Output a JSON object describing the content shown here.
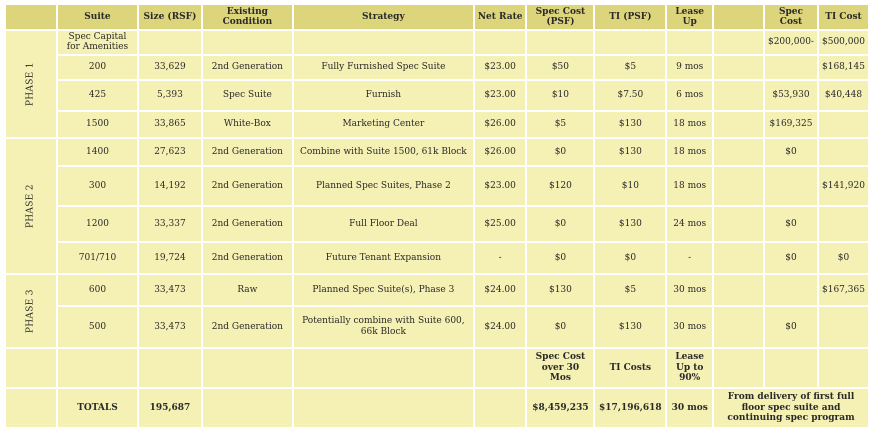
{
  "headers": {
    "suite": "Suite",
    "size": "Size (RSF)",
    "existing": "Existing Condition",
    "strategy": "Strategy",
    "net_rate": "Net Rate",
    "spec_cost_psf": "Spec Cost (PSF)",
    "ti_psf": "TI (PSF)",
    "lease_up": "Lease Up",
    "spec_cost": "Spec Cost",
    "ti_cost": "TI Cost"
  },
  "phases": [
    "PHASE 1",
    "PHASE 2",
    "PHASE 3"
  ],
  "rows": [
    {
      "suite": "Spec Capital for Amenities",
      "size": "",
      "existing": "",
      "strategy": "",
      "net_rate": "",
      "spec_cost_psf": "",
      "ti_psf": "",
      "lease_up": "",
      "spec_cost": "$200,000-",
      "ti_cost": "$500,000"
    },
    {
      "suite": "200",
      "size": "33,629",
      "existing": "2nd Generation",
      "strategy": "Fully Furnished Spec Suite",
      "net_rate": "$23.00",
      "spec_cost_psf": "$50",
      "ti_psf": "$5",
      "lease_up": "9 mos",
      "spec_cost": "",
      "ti_cost": "$168,145"
    },
    {
      "suite": "425",
      "size": "5,393",
      "existing": "Spec Suite",
      "strategy": "Furnish",
      "net_rate": "$23.00",
      "spec_cost_psf": "$10",
      "ti_psf": "$7.50",
      "lease_up": "6 mos",
      "spec_cost": "$53,930",
      "ti_cost": "$40,448"
    },
    {
      "suite": "1500",
      "size": "33,865",
      "existing": "White-Box",
      "strategy": "Marketing Center",
      "net_rate": "$26.00",
      "spec_cost_psf": "$5",
      "ti_psf": "$130",
      "lease_up": "18 mos",
      "spec_cost": "$169,325",
      "ti_cost": ""
    },
    {
      "suite": "1400",
      "size": "27,623",
      "existing": "2nd Generation",
      "strategy": "Combine with Suite 1500, 61k Block",
      "net_rate": "$26.00",
      "spec_cost_psf": "$0",
      "ti_psf": "$130",
      "lease_up": "18 mos",
      "spec_cost": "$0",
      "ti_cost": ""
    },
    {
      "suite": "300",
      "size": "14,192",
      "existing": "2nd Generation",
      "strategy": "Planned Spec Suites, Phase 2",
      "net_rate": "$23.00",
      "spec_cost_psf": "$120",
      "ti_psf": "$10",
      "lease_up": "18 mos",
      "spec_cost": "",
      "ti_cost": "$141,920"
    },
    {
      "suite": "1200",
      "size": "33,337",
      "existing": "2nd Generation",
      "strategy": "Full Floor Deal",
      "net_rate": "$25.00",
      "spec_cost_psf": "$0",
      "ti_psf": "$130",
      "lease_up": "24 mos",
      "spec_cost": "$0",
      "ti_cost": ""
    },
    {
      "suite": "701/710",
      "size": "19,724",
      "existing": "2nd Generation",
      "strategy": "Future Tenant Expansion",
      "net_rate": "-",
      "spec_cost_psf": "$0",
      "ti_psf": "$0",
      "lease_up": "-",
      "spec_cost": "$0",
      "ti_cost": "$0"
    },
    {
      "suite": "600",
      "size": "33,473",
      "existing": "Raw",
      "strategy": "Planned Spec Suite(s), Phase 3",
      "net_rate": "$24.00",
      "spec_cost_psf": "$130",
      "ti_psf": "$5",
      "lease_up": "30 mos",
      "spec_cost": "",
      "ti_cost": "$167,365"
    },
    {
      "suite": "500",
      "size": "33,473",
      "existing": "2nd Generation",
      "strategy": "Potentially combine with Suite 600, 66k Block",
      "net_rate": "$24.00",
      "spec_cost_psf": "$0",
      "ti_psf": "$130",
      "lease_up": "30 mos",
      "spec_cost": "$0",
      "ti_cost": ""
    }
  ],
  "summary_labels": {
    "spec_cost_over": "Spec Cost over 30 Mos",
    "ti_costs": "TI Costs",
    "lease_up_to": "Lease Up to 90%"
  },
  "totals": {
    "label": "TOTALS",
    "size": "195,687",
    "spec_cost_total": "$8,459,235",
    "ti_total": "$17,196,618",
    "lease_up": "30 mos",
    "note": "From delivery of first full floor spec suite and continuing spec program"
  }
}
